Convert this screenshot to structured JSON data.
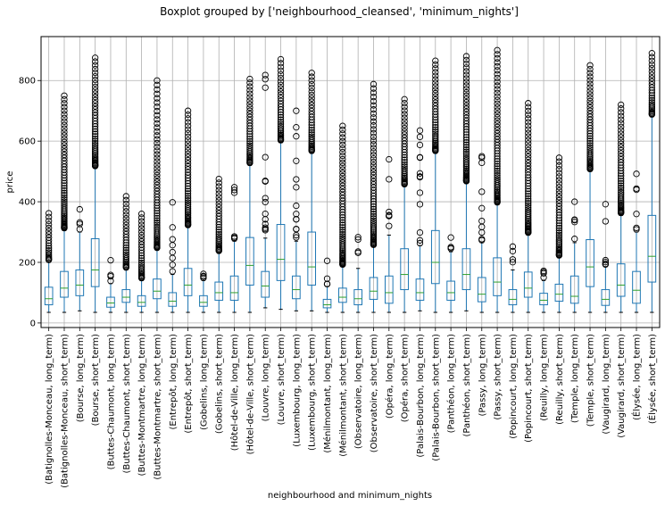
{
  "chart_data": {
    "type": "boxplot",
    "title": "Boxplot grouped by ['neighbourhood_cleansed', 'minimum_nights']",
    "xlabel": "neighbourhood and minimum_nights",
    "ylabel": "price",
    "ylim": [
      -15,
      945
    ],
    "yticks": [
      0,
      200,
      400,
      600,
      800
    ],
    "grid": true,
    "colors": {
      "box": "#1f77b4",
      "median": "#2ca02c",
      "whisker": "#000000",
      "flier": "#000000"
    },
    "categories": [
      {
        "label": "(Batignolles-Monceau, long_term)",
        "q1": 60,
        "median": 80,
        "q3": 118,
        "wlo": 35,
        "whi": 200,
        "outlier_top": 362,
        "density": "dense"
      },
      {
        "label": "(Batignolles-Monceau, short_term)",
        "q1": 85,
        "median": 115,
        "q3": 170,
        "wlo": 35,
        "whi": 305,
        "outlier_top": 750,
        "density": "dense"
      },
      {
        "label": "(Bourse, long_term)",
        "q1": 90,
        "median": 125,
        "q3": 175,
        "wlo": 40,
        "whi": 300,
        "outlier_top": 375,
        "density": "sparse"
      },
      {
        "label": "(Bourse, short_term)",
        "q1": 120,
        "median": 175,
        "q3": 278,
        "wlo": 35,
        "whi": 510,
        "outlier_top": 875,
        "density": "dense"
      },
      {
        "label": "(Buttes-Chaumont, long_term)",
        "q1": 52,
        "median": 66,
        "q3": 85,
        "wlo": 35,
        "whi": 130,
        "outlier_top": 207,
        "density": "sparse"
      },
      {
        "label": "(Buttes-Chaumont, short_term)",
        "q1": 68,
        "median": 85,
        "q3": 110,
        "wlo": 35,
        "whi": 175,
        "outlier_top": 418,
        "density": "dense"
      },
      {
        "label": "(Buttes-Montmartre, long_term)",
        "q1": 55,
        "median": 68,
        "q3": 90,
        "wlo": 35,
        "whi": 140,
        "outlier_top": 360,
        "density": "dense"
      },
      {
        "label": "(Buttes-Montmartre, short_term)",
        "q1": 80,
        "median": 105,
        "q3": 145,
        "wlo": 35,
        "whi": 240,
        "outlier_top": 800,
        "density": "dense"
      },
      {
        "label": "(Entrepôt, long_term)",
        "q1": 55,
        "median": 72,
        "q3": 100,
        "wlo": 35,
        "whi": 160,
        "outlier_top": 398,
        "density": "sparse"
      },
      {
        "label": "(Entrepôt, short_term)",
        "q1": 90,
        "median": 125,
        "q3": 180,
        "wlo": 35,
        "whi": 315,
        "outlier_top": 700,
        "density": "dense"
      },
      {
        "label": "(Gobelins, long_term)",
        "q1": 55,
        "median": 68,
        "q3": 90,
        "wlo": 35,
        "whi": 140,
        "outlier_top": 162,
        "density": "sparse"
      },
      {
        "label": "(Gobelins, short_term)",
        "q1": 75,
        "median": 100,
        "q3": 135,
        "wlo": 35,
        "whi": 230,
        "outlier_top": 475,
        "density": "dense"
      },
      {
        "label": "(Hôtel-de-Ville, long_term)",
        "q1": 75,
        "median": 100,
        "q3": 155,
        "wlo": 35,
        "whi": 270,
        "outlier_top": 448,
        "density": "sparse"
      },
      {
        "label": "(Hôtel-de-Ville, short_term)",
        "q1": 125,
        "median": 190,
        "q3": 282,
        "wlo": 35,
        "whi": 520,
        "outlier_top": 805,
        "density": "dense"
      },
      {
        "label": "(Louvre, long_term)",
        "q1": 85,
        "median": 122,
        "q3": 170,
        "wlo": 50,
        "whi": 280,
        "outlier_top": 818,
        "density": "sparse"
      },
      {
        "label": "(Louvre, short_term)",
        "q1": 140,
        "median": 210,
        "q3": 325,
        "wlo": 45,
        "whi": 595,
        "outlier_top": 870,
        "density": "dense"
      },
      {
        "label": "(Luxembourg, long_term)",
        "q1": 80,
        "median": 110,
        "q3": 155,
        "wlo": 40,
        "whi": 270,
        "outlier_top": 700,
        "density": "sparse"
      },
      {
        "label": "(Luxembourg, short_term)",
        "q1": 125,
        "median": 185,
        "q3": 300,
        "wlo": 40,
        "whi": 560,
        "outlier_top": 825,
        "density": "dense"
      },
      {
        "label": "(Ménilmontant, long_term)",
        "q1": 50,
        "median": 60,
        "q3": 78,
        "wlo": 35,
        "whi": 120,
        "outlier_top": 205,
        "density": "sparse"
      },
      {
        "label": "(Ménilmontant, short_term)",
        "q1": 68,
        "median": 85,
        "q3": 115,
        "wlo": 35,
        "whi": 185,
        "outlier_top": 650,
        "density": "dense"
      },
      {
        "label": "(Observatoire, long_term)",
        "q1": 60,
        "median": 80,
        "q3": 110,
        "wlo": 35,
        "whi": 180,
        "outlier_top": 283,
        "density": "sparse"
      },
      {
        "label": "(Observatoire, short_term)",
        "q1": 78,
        "median": 105,
        "q3": 150,
        "wlo": 35,
        "whi": 250,
        "outlier_top": 788,
        "density": "dense"
      },
      {
        "label": "(Opéra, long_term)",
        "q1": 65,
        "median": 100,
        "q3": 155,
        "wlo": 35,
        "whi": 290,
        "outlier_top": 540,
        "density": "sparse"
      },
      {
        "label": "(Opéra, short_term)",
        "q1": 110,
        "median": 160,
        "q3": 245,
        "wlo": 35,
        "whi": 450,
        "outlier_top": 738,
        "density": "dense"
      },
      {
        "label": "(Palais-Bourbon, long_term)",
        "q1": 75,
        "median": 100,
        "q3": 145,
        "wlo": 40,
        "whi": 255,
        "outlier_top": 635,
        "density": "sparse"
      },
      {
        "label": "(Palais-Bourbon, short_term)",
        "q1": 130,
        "median": 200,
        "q3": 305,
        "wlo": 35,
        "whi": 560,
        "outlier_top": 865,
        "density": "dense"
      },
      {
        "label": "(Panthéon, long_term)",
        "q1": 75,
        "median": 100,
        "q3": 138,
        "wlo": 35,
        "whi": 235,
        "outlier_top": 282,
        "density": "sparse"
      },
      {
        "label": "(Panthéon, short_term)",
        "q1": 110,
        "median": 160,
        "q3": 245,
        "wlo": 40,
        "whi": 460,
        "outlier_top": 880,
        "density": "dense"
      },
      {
        "label": "(Passy, long_term)",
        "q1": 70,
        "median": 95,
        "q3": 150,
        "wlo": 35,
        "whi": 265,
        "outlier_top": 550,
        "density": "sparse"
      },
      {
        "label": "(Passy, short_term)",
        "q1": 90,
        "median": 135,
        "q3": 215,
        "wlo": 35,
        "whi": 390,
        "outlier_top": 900,
        "density": "dense"
      },
      {
        "label": "(Popincourt, long_term)",
        "q1": 60,
        "median": 78,
        "q3": 110,
        "wlo": 35,
        "whi": 175,
        "outlier_top": 252,
        "density": "sparse"
      },
      {
        "label": "(Popincourt, short_term)",
        "q1": 85,
        "median": 115,
        "q3": 168,
        "wlo": 35,
        "whi": 290,
        "outlier_top": 725,
        "density": "dense"
      },
      {
        "label": "(Reuilly, long_term)",
        "q1": 60,
        "median": 75,
        "q3": 98,
        "wlo": 35,
        "whi": 140,
        "outlier_top": 172,
        "density": "sparse"
      },
      {
        "label": "(Reuilly, short_term)",
        "q1": 72,
        "median": 95,
        "q3": 128,
        "wlo": 35,
        "whi": 215,
        "outlier_top": 545,
        "density": "dense"
      },
      {
        "label": "(Temple, long_term)",
        "q1": 65,
        "median": 88,
        "q3": 155,
        "wlo": 35,
        "whi": 265,
        "outlier_top": 400,
        "density": "sparse"
      },
      {
        "label": "(Temple, short_term)",
        "q1": 120,
        "median": 185,
        "q3": 275,
        "wlo": 35,
        "whi": 500,
        "outlier_top": 850,
        "density": "dense"
      },
      {
        "label": "(Vaugirard, long_term)",
        "q1": 58,
        "median": 78,
        "q3": 110,
        "wlo": 35,
        "whi": 185,
        "outlier_top": 392,
        "density": "sparse"
      },
      {
        "label": "(Vaugirard, short_term)",
        "q1": 88,
        "median": 125,
        "q3": 195,
        "wlo": 35,
        "whi": 355,
        "outlier_top": 720,
        "density": "dense"
      },
      {
        "label": "(Élysée, long_term)",
        "q1": 65,
        "median": 108,
        "q3": 170,
        "wlo": 35,
        "whi": 300,
        "outlier_top": 492,
        "density": "sparse"
      },
      {
        "label": "(Élysée, short_term)",
        "q1": 135,
        "median": 220,
        "q3": 355,
        "wlo": 35,
        "whi": 680,
        "outlier_top": 890,
        "density": "dense"
      }
    ]
  }
}
